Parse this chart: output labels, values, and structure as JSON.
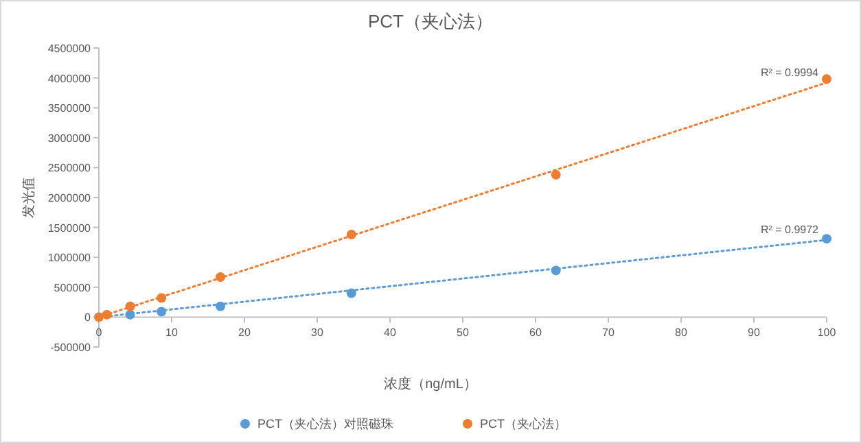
{
  "chart_data": {
    "type": "scatter",
    "title": "PCT（夹心法）",
    "xlabel": "浓度（ng/mL）",
    "ylabel": "发光值",
    "xlim": [
      0,
      100
    ],
    "xticks": [
      0,
      10,
      20,
      30,
      40,
      50,
      60,
      70,
      80,
      90,
      100
    ],
    "ylim": [
      -500000,
      4500000
    ],
    "yticks": [
      -500000,
      0,
      500000,
      1000000,
      1500000,
      2000000,
      2500000,
      3000000,
      3500000,
      4000000,
      4500000
    ],
    "grid": false,
    "legend": "bottom",
    "marker": "circle",
    "series": [
      {
        "name": "PCT（夹心法）对照磁珠",
        "color": "#5b9bd5",
        "x": [
          4.3,
          8.6,
          16.7,
          34.7,
          62.8,
          100
        ],
        "values": [
          40000,
          90000,
          180000,
          400000,
          780000,
          1310000
        ]
      },
      {
        "name": "PCT（夹心法）",
        "color": "#ed7d31",
        "x": [
          0,
          1.1,
          4.3,
          8.6,
          16.7,
          34.7,
          62.8,
          100
        ],
        "values": [
          0,
          40000,
          180000,
          320000,
          670000,
          1380000,
          2380000,
          3980000
        ]
      },
      {
        "type": "line",
        "line_style": "dotted",
        "marker": "none",
        "color": "#5b9bd5",
        "x": [
          0,
          100
        ],
        "values": [
          0,
          1290000
        ]
      },
      {
        "type": "line",
        "line_style": "dotted",
        "marker": "none",
        "color": "#ed7d31",
        "x": [
          0,
          100
        ],
        "values": [
          0,
          3920000
        ]
      }
    ],
    "annotations": [
      {
        "text": "R² = 0.9972",
        "x": 100,
        "y": 1290000
      },
      {
        "text": "R² = 0.9994",
        "x": 100,
        "y": 3920000
      }
    ]
  }
}
